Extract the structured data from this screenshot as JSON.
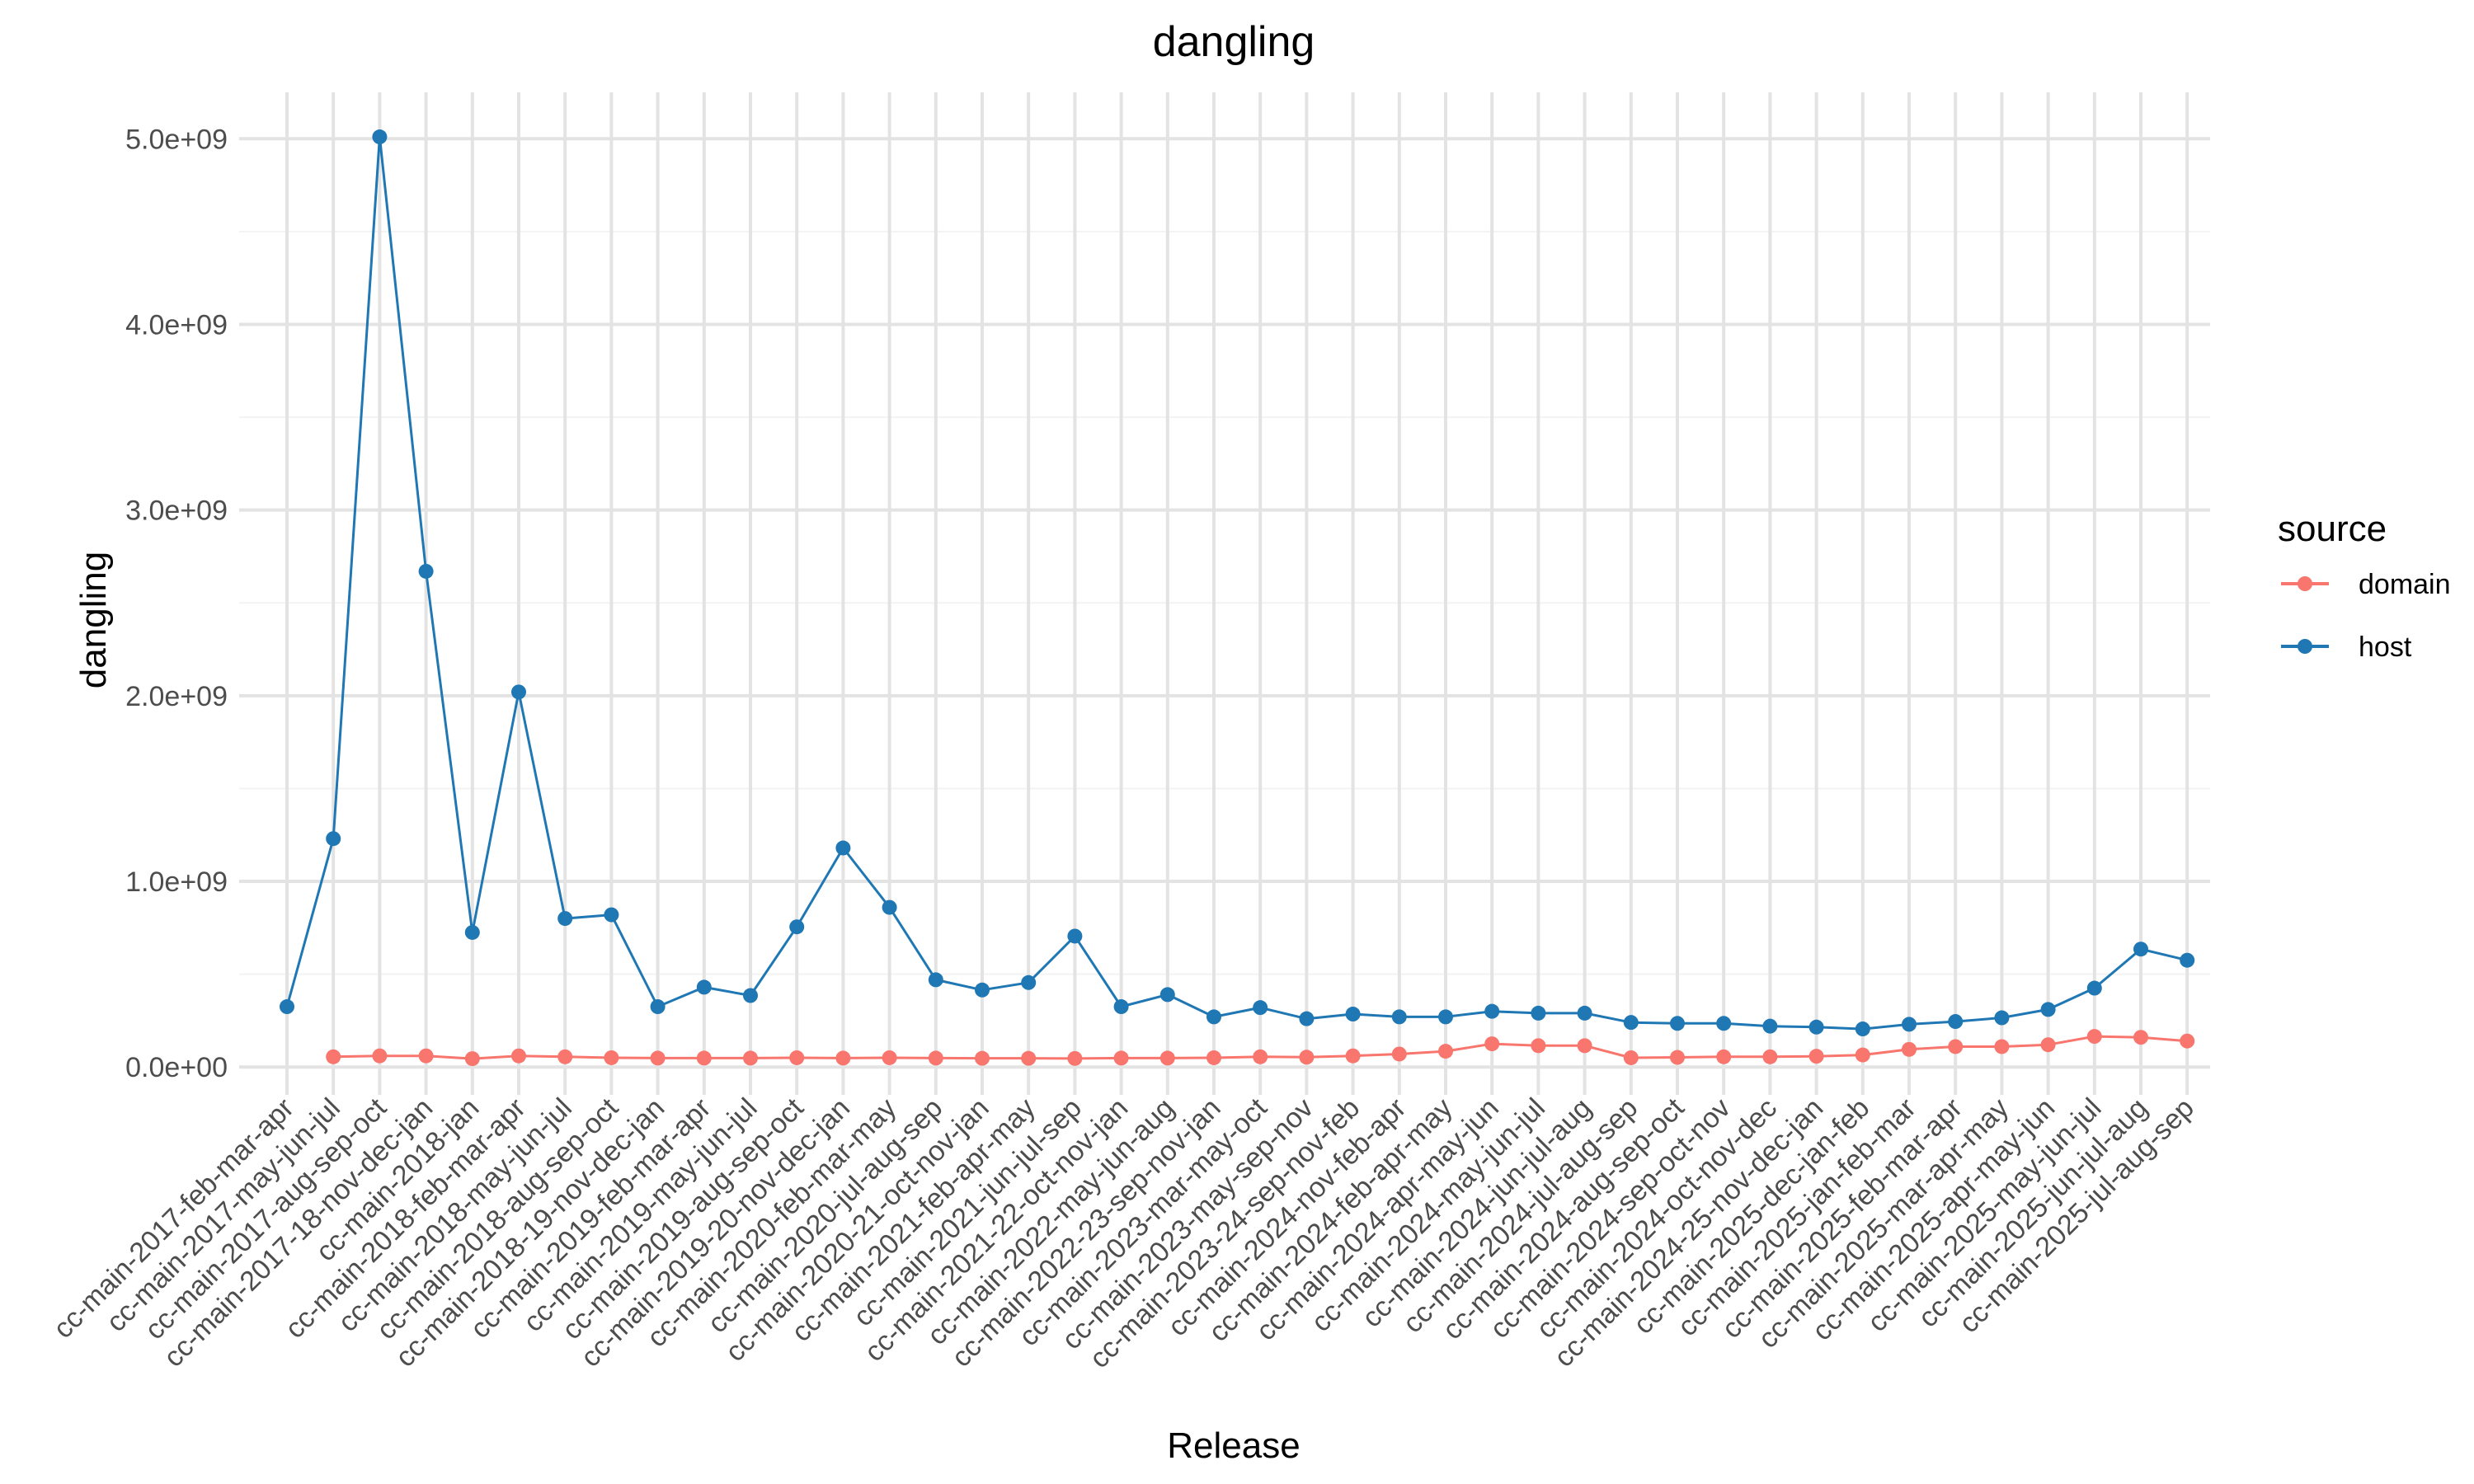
{
  "chart_data": {
    "type": "line",
    "title": "dangling",
    "xlabel": "Release",
    "ylabel": "dangling",
    "ylim": [
      -150000000,
      5250000000
    ],
    "yticks": [
      0,
      1000000000,
      2000000000,
      3000000000,
      4000000000,
      5000000000
    ],
    "ytick_labels": [
      "0.0e+00",
      "1.0e+09",
      "2.0e+09",
      "3.0e+09",
      "4.0e+09",
      "5.0e+09"
    ],
    "grid": true,
    "legend": {
      "title": "source",
      "position": "right"
    },
    "categories": [
      "cc-main-2017-feb-mar-apr",
      "cc-main-2017-may-jun-jul",
      "cc-main-2017-aug-sep-oct",
      "cc-main-2017-18-nov-dec-jan",
      "cc-main-2018-jan",
      "cc-main-2018-feb-mar-apr",
      "cc-main-2018-may-jun-jul",
      "cc-main-2018-aug-sep-oct",
      "cc-main-2018-19-nov-dec-jan",
      "cc-main-2019-feb-mar-apr",
      "cc-main-2019-may-jun-jul",
      "cc-main-2019-aug-sep-oct",
      "cc-main-2019-20-nov-dec-jan",
      "cc-main-2020-feb-mar-may",
      "cc-main-2020-jul-aug-sep",
      "cc-main-2020-21-oct-nov-jan",
      "cc-main-2021-feb-apr-may",
      "cc-main-2021-jun-jul-sep",
      "cc-main-2021-22-oct-nov-jan",
      "cc-main-2022-may-jun-aug",
      "cc-main-2022-23-sep-nov-jan",
      "cc-main-2023-mar-may-oct",
      "cc-main-2023-may-sep-nov",
      "cc-main-2023-24-sep-nov-feb",
      "cc-main-2024-nov-feb-apr",
      "cc-main-2024-feb-apr-may",
      "cc-main-2024-apr-may-jun",
      "cc-main-2024-may-jun-jul",
      "cc-main-2024-jun-jul-aug",
      "cc-main-2024-jul-aug-sep",
      "cc-main-2024-aug-sep-oct",
      "cc-main-2024-sep-oct-nov",
      "cc-main-2024-oct-nov-dec",
      "cc-main-2024-25-nov-dec-jan",
      "cc-main-2025-dec-jan-feb",
      "cc-main-2025-jan-feb-mar",
      "cc-main-2025-feb-mar-apr",
      "cc-main-2025-mar-apr-may",
      "cc-main-2025-apr-may-jun",
      "cc-main-2025-may-jun-jul",
      "cc-main-2025-jun-jul-aug",
      "cc-main-2025-jul-aug-sep"
    ],
    "series": [
      {
        "name": "domain",
        "color": "#F8766D",
        "values": [
          null,
          55000000,
          60000000,
          60000000,
          45000000,
          60000000,
          55000000,
          50000000,
          48000000,
          48000000,
          48000000,
          50000000,
          48000000,
          50000000,
          48000000,
          47000000,
          47000000,
          46000000,
          48000000,
          48000000,
          50000000,
          55000000,
          53000000,
          60000000,
          70000000,
          85000000,
          125000000,
          115000000,
          115000000,
          50000000,
          52000000,
          55000000,
          55000000,
          58000000,
          65000000,
          95000000,
          110000000,
          110000000,
          120000000,
          165000000,
          160000000,
          140000000
        ]
      },
      {
        "name": "host",
        "color": "#1F77B4",
        "values": [
          325000000,
          1230000000,
          5010000000,
          2670000000,
          725000000,
          2020000000,
          800000000,
          820000000,
          325000000,
          430000000,
          385000000,
          755000000,
          1180000000,
          860000000,
          470000000,
          415000000,
          455000000,
          705000000,
          325000000,
          390000000,
          270000000,
          320000000,
          260000000,
          285000000,
          270000000,
          270000000,
          300000000,
          290000000,
          290000000,
          240000000,
          235000000,
          235000000,
          220000000,
          215000000,
          205000000,
          230000000,
          245000000,
          265000000,
          310000000,
          425000000,
          635000000,
          575000000
        ]
      }
    ]
  }
}
